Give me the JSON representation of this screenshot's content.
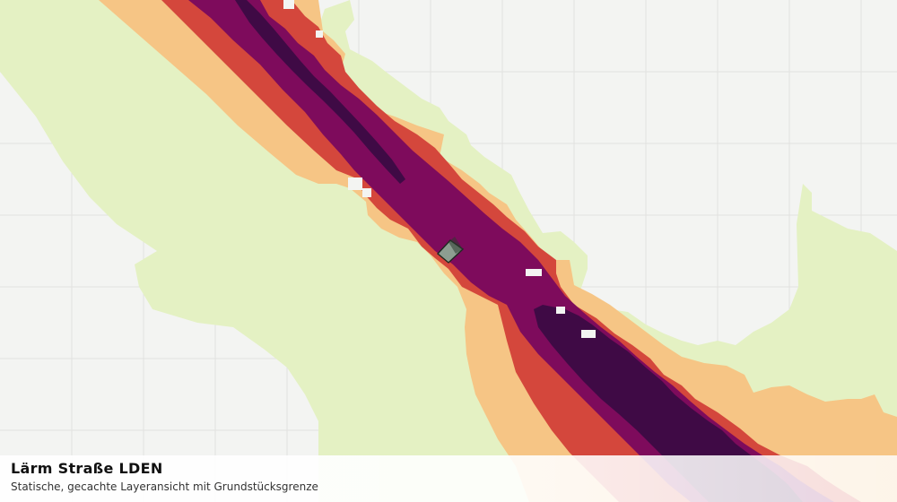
{
  "map": {
    "layer_name": "Lärm Straße LDEN",
    "description": "Statische, gecachte Layeransicht mit Grundstücksgrenze",
    "colors": {
      "background": "#f3f4f2",
      "grid": "#e1e2e0",
      "level_lowest": "#e4f1c3",
      "level_low": "#f6c585",
      "level_mid": "#d4473c",
      "level_high": "#7e0b5c",
      "level_highest": "#3f0a45",
      "parcel_fill": "#8fb89a",
      "parcel_stroke": "#1e2a22"
    }
  }
}
